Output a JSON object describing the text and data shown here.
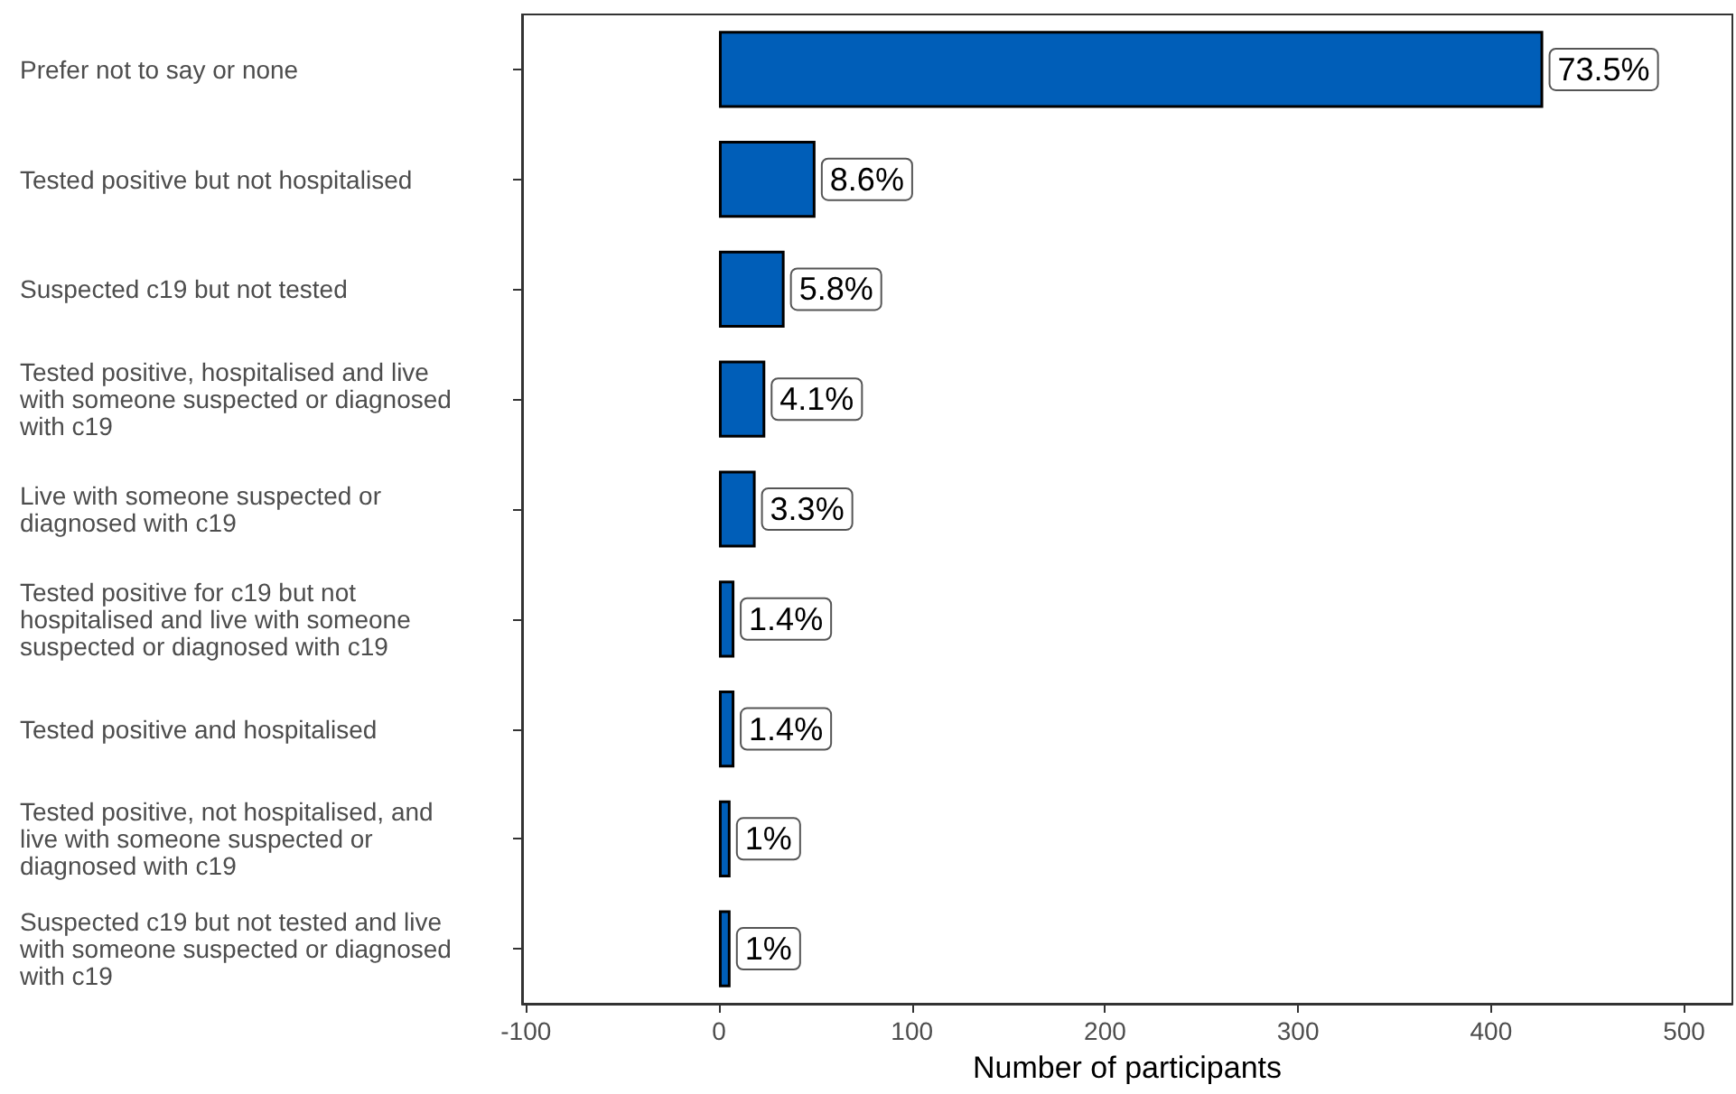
{
  "chart_data": {
    "type": "bar",
    "orientation": "horizontal",
    "categories": [
      "Prefer not to say or none",
      "Tested positive but not hospitalised",
      "Suspected c19 but not tested",
      "Tested positive, hospitalised and live with someone suspected or diagnosed with c19",
      "Live with someone suspected or diagnosed with c19",
      "Tested positive for c19 but not hospitalised and live with someone suspected or diagnosed with c19",
      "Tested positive and hospitalised",
      "Tested positive, not hospitalised, and live with someone suspected or diagnosed with c19",
      "Suspected c19 but not tested and live with someone suspected or diagnosed with c19"
    ],
    "values": [
      427,
      50,
      34,
      24,
      19,
      8,
      8,
      6,
      6
    ],
    "annotations": [
      {
        "text": "73.5%",
        "x": 427,
        "y": "Prefer not to say or none"
      },
      {
        "text": "8.6%",
        "x": 50,
        "y": "Tested positive but not hospitalised"
      },
      {
        "text": "5.8%",
        "x": 34,
        "y": "Suspected c19 but not tested"
      },
      {
        "text": "4.1%",
        "x": 24,
        "y": "Tested positive, hospitalised and live with someone suspected or diagnosed with c19"
      },
      {
        "text": "3.3%",
        "x": 19,
        "y": "Live with someone suspected or diagnosed with c19"
      },
      {
        "text": "1.4%",
        "x": 8,
        "y": "Tested positive for c19 but not hospitalised and live with someone suspected or diagnosed with c19"
      },
      {
        "text": "1.4%",
        "x": 8,
        "y": "Tested positive and hospitalised"
      },
      {
        "text": "1%",
        "x": 6,
        "y": "Tested positive, not hospitalised, and live with someone suspected or diagnosed with c19"
      },
      {
        "text": "1%",
        "x": 6,
        "y": "Suspected c19 but not tested and live with someone suspected or diagnosed with c19"
      }
    ],
    "color": "#005eb8",
    "xlabel": "Number of participants",
    "xlim": [
      -102,
      525
    ],
    "xticks": [
      -100,
      0,
      100,
      200,
      300,
      400,
      500
    ],
    "grid": false
  }
}
